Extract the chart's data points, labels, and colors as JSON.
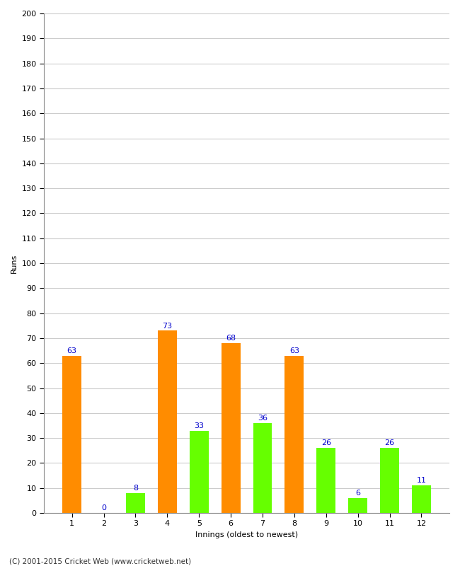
{
  "values": [
    63,
    0,
    8,
    73,
    33,
    68,
    36,
    63,
    26,
    6,
    26,
    11
  ],
  "colors": [
    "#ff8c00",
    "#66ff00",
    "#66ff00",
    "#ff8c00",
    "#66ff00",
    "#ff8c00",
    "#66ff00",
    "#ff8c00",
    "#66ff00",
    "#66ff00",
    "#66ff00",
    "#66ff00"
  ],
  "categories": [
    "1",
    "2",
    "3",
    "4",
    "5",
    "6",
    "7",
    "8",
    "9",
    "10",
    "11",
    "12"
  ],
  "xlabel": "Innings (oldest to newest)",
  "ylabel": "Runs",
  "ylim": [
    0,
    200
  ],
  "yticks": [
    0,
    10,
    20,
    30,
    40,
    50,
    60,
    70,
    80,
    90,
    100,
    110,
    120,
    130,
    140,
    150,
    160,
    170,
    180,
    190,
    200
  ],
  "copyright": "(C) 2001-2015 Cricket Web (www.cricketweb.net)",
  "label_color": "#0000cc",
  "background_color": "#ffffff",
  "grid_color": "#cccccc",
  "bar_width": 0.6
}
